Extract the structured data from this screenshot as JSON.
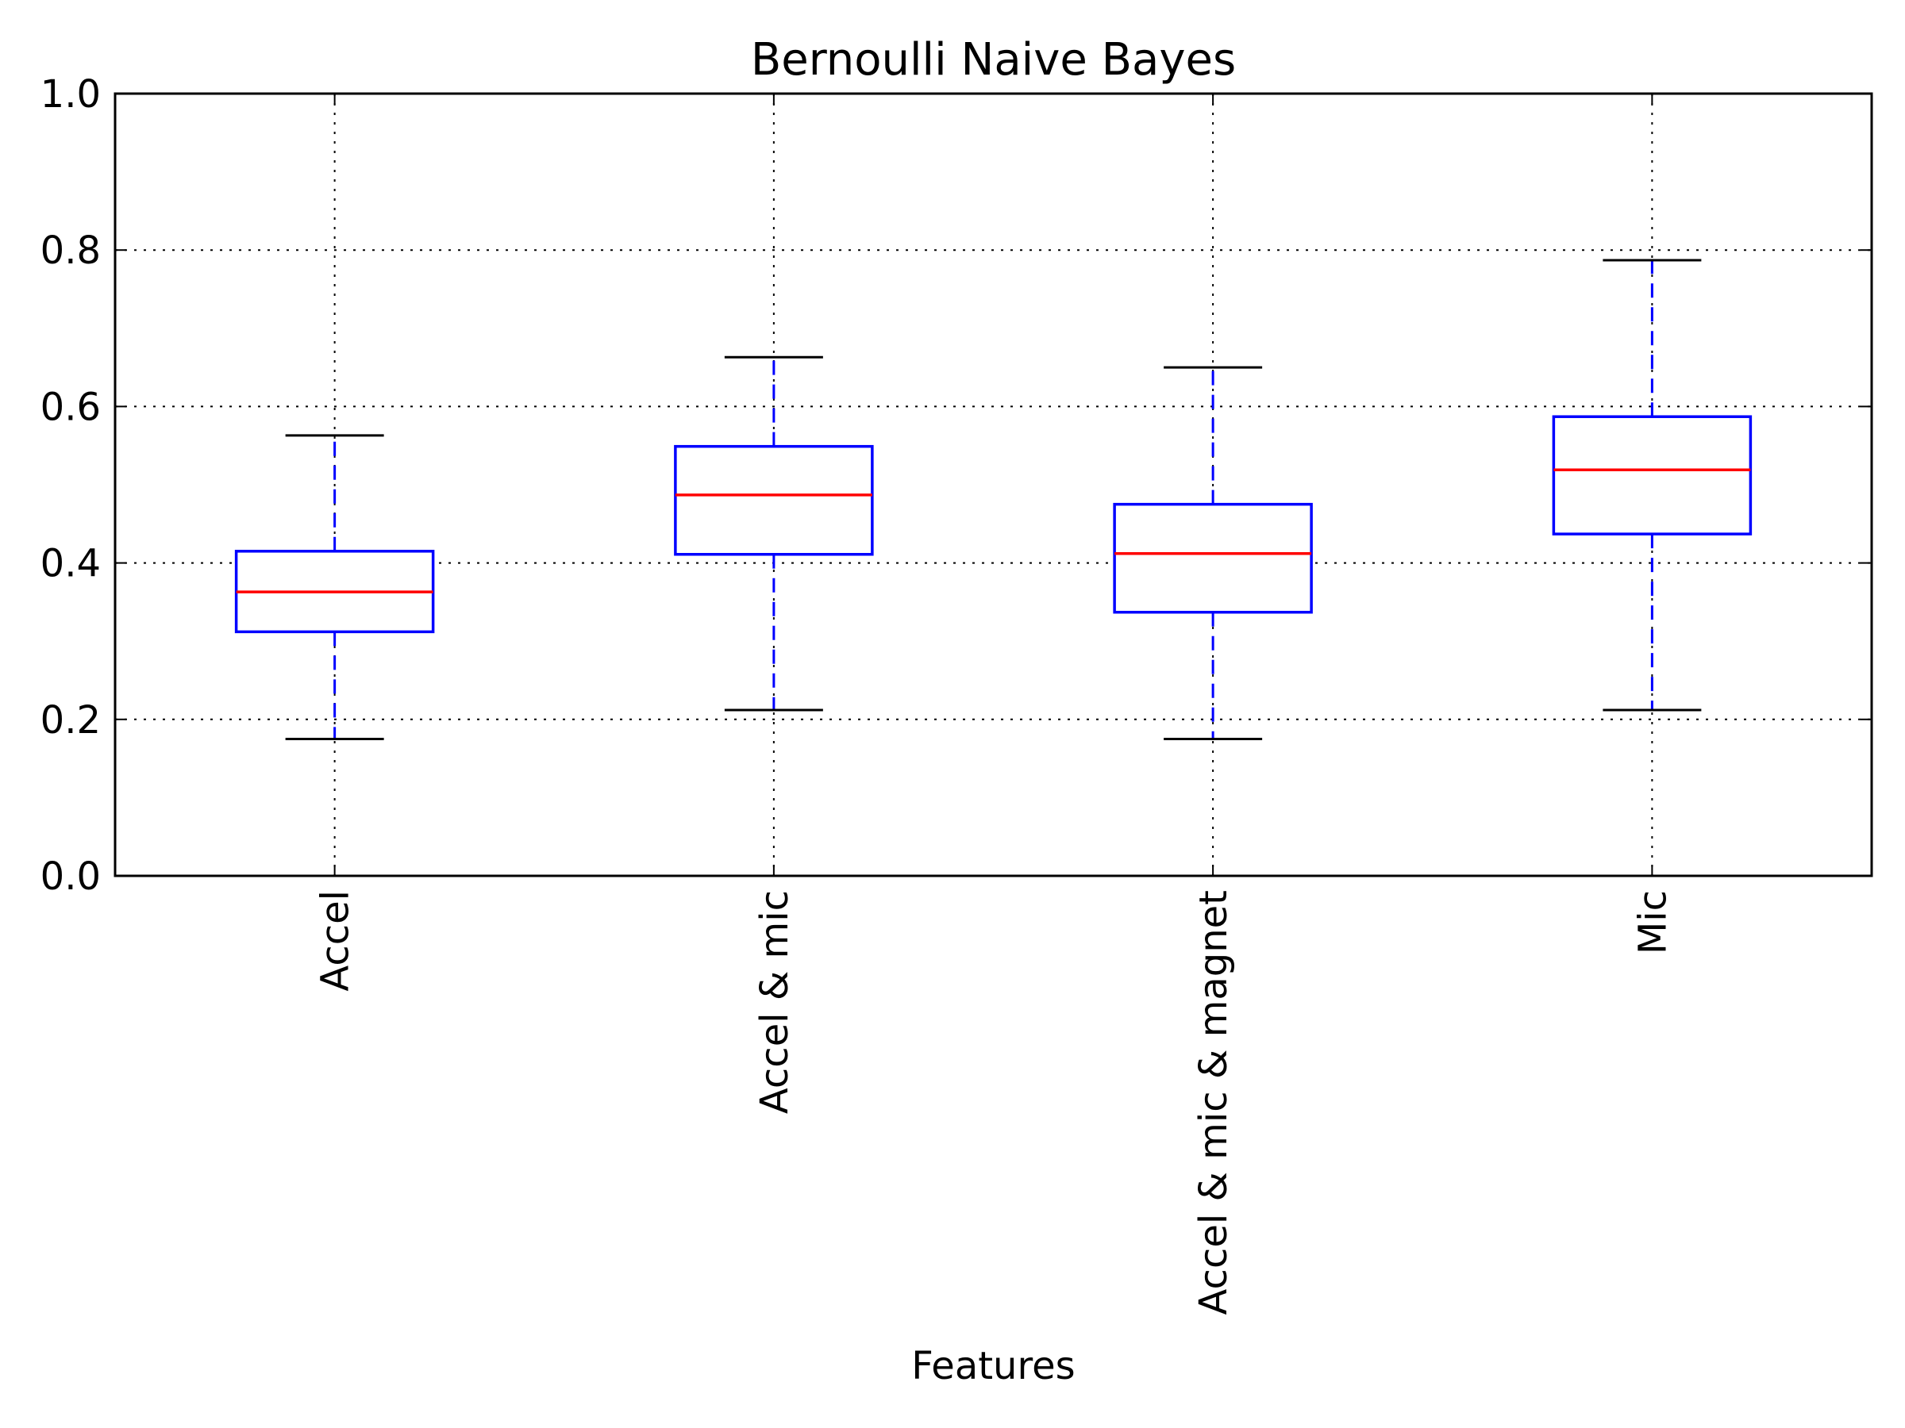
{
  "chart_data": {
    "type": "box",
    "title": "Bernoulli Naive Bayes",
    "xlabel": "Features",
    "ylabel": "",
    "ylim": [
      0.0,
      1.0
    ],
    "yticks": [
      "0.0",
      "0.2",
      "0.4",
      "0.6",
      "0.8",
      "1.0"
    ],
    "grid": true,
    "categories": [
      "Accel",
      "Accel & mic",
      "Accel & mic & magnet",
      "Mic"
    ],
    "boxes": [
      {
        "category": "Accel",
        "whisker_low": 0.175,
        "q1": 0.312,
        "median": 0.363,
        "q3": 0.415,
        "whisker_high": 0.563
      },
      {
        "category": "Accel & mic",
        "whisker_low": 0.212,
        "q1": 0.411,
        "median": 0.487,
        "q3": 0.549,
        "whisker_high": 0.663
      },
      {
        "category": "Accel & mic & magnet",
        "whisker_low": 0.175,
        "q1": 0.337,
        "median": 0.412,
        "q3": 0.475,
        "whisker_high": 0.65
      },
      {
        "category": "Mic",
        "whisker_low": 0.212,
        "q1": 0.437,
        "median": 0.519,
        "q3": 0.587,
        "whisker_high": 0.787
      }
    ],
    "colors": {
      "box": "#0000ff",
      "median": "#ff0000",
      "caps": "#000000",
      "grid": "#000000"
    }
  }
}
